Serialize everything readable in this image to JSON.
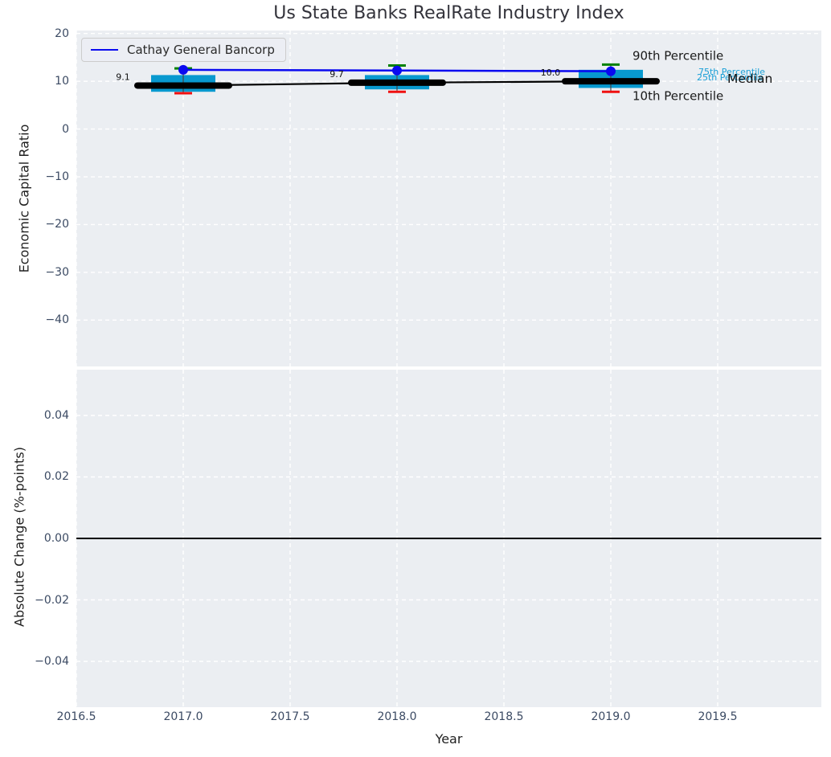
{
  "figure": {
    "title": "Us State Banks RealRate Industry Index",
    "background": "#ffffff",
    "axes_background": "#ebeef2",
    "grid_color": "#ffffff",
    "tick_label_color": "#3b4a63",
    "text_color": "#1f1f1f"
  },
  "legend": {
    "label": "Cathay General Bancorp",
    "line_color": "#0a0af0",
    "position": "upper left"
  },
  "chart_data": [
    {
      "type": "boxplot-timeseries",
      "title": "Us State Banks RealRate Industry Index",
      "xlabel": "Year",
      "ylabel": "Economic Capital Ratio",
      "x": [
        2017,
        2018,
        2019
      ],
      "xlim": [
        2016.5,
        2019.985
      ],
      "ylim": [
        -49.7,
        20.62
      ],
      "xticks": [
        2016.5,
        2017.0,
        2017.5,
        2018.0,
        2018.5,
        2019.0,
        2019.5
      ],
      "xticklabels": [
        "2016.5",
        "2017.0",
        "2017.5",
        "2018.0",
        "2018.5",
        "2019.0",
        "2019.5"
      ],
      "yticks": [
        20,
        10,
        0,
        -10,
        -20,
        -30,
        -40
      ],
      "yticklabels": [
        "20",
        "10",
        "0",
        "−10",
        "−20",
        "−30",
        "−40"
      ],
      "grid": true,
      "box_fill_color": "#0899cf",
      "series": [
        {
          "name": "90th Percentile",
          "role": "p90",
          "color": "#008000",
          "values": [
            12.7,
            13.3,
            13.5
          ]
        },
        {
          "name": "75th Percentile",
          "role": "p75",
          "color": "#0899cf",
          "values": [
            11.3,
            11.3,
            12.4
          ]
        },
        {
          "name": "Median",
          "role": "median",
          "color": "#000000",
          "values": [
            9.1,
            9.7,
            10.0
          ]
        },
        {
          "name": "25th Percentile",
          "role": "p25",
          "color": "#0899cf",
          "values": [
            7.8,
            8.3,
            8.6
          ]
        },
        {
          "name": "10th Percentile",
          "role": "p10",
          "color": "#f01010",
          "values": [
            7.5,
            7.8,
            7.8
          ]
        },
        {
          "name": "Cathay General Bancorp",
          "role": "company",
          "color": "#0a0af0",
          "values": [
            12.4,
            12.25,
            12.1
          ]
        }
      ],
      "median_annotations": [
        "9.1",
        "9.7",
        "10.0"
      ],
      "side_labels": [
        {
          "text": "90th Percentile",
          "color": "#1a1a1a",
          "size": 15
        },
        {
          "text": "75th Percentile",
          "color": "#1ba0d7",
          "size": 11
        },
        {
          "text": "25th Percentile",
          "color": "#1ba0d7",
          "size": 11
        },
        {
          "text": "Median",
          "color": "#111111",
          "size": 15.5
        },
        {
          "text": "10th Percentile",
          "color": "#1a1a1a",
          "size": 15
        }
      ]
    },
    {
      "type": "line",
      "xlabel": "Year",
      "ylabel": "Absolute Change (%-points)",
      "xlim": [
        2016.5,
        2019.985
      ],
      "ylim": [
        -0.0549,
        0.0549
      ],
      "yticks": [
        0.04,
        0.02,
        0.0,
        -0.02,
        -0.04
      ],
      "yticklabels": [
        "0.04",
        "0.02",
        "0.00",
        "−0.02",
        "−0.04"
      ],
      "grid": true,
      "zero_line": {
        "value": 0.0,
        "color": "#000000"
      }
    }
  ]
}
